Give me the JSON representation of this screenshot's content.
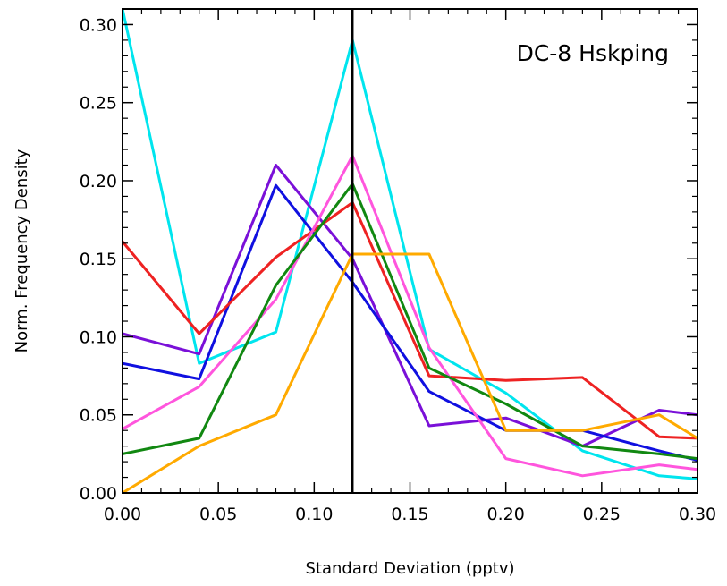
{
  "chart_data": {
    "type": "line",
    "title": "DC-8 Hskping",
    "xlabel": "Standard Deviation (pptv)",
    "ylabel": "Norm. Frequency Density",
    "xlim": [
      0.0,
      0.3
    ],
    "ylim": [
      0.0,
      0.31
    ],
    "xticks": [
      0.0,
      0.05,
      0.1,
      0.15,
      0.2,
      0.25,
      0.3
    ],
    "xtick_labels": [
      "0.00",
      "0.05",
      "0.10",
      "0.15",
      "0.20",
      "0.25",
      "0.30"
    ],
    "yticks": [
      0.0,
      0.05,
      0.1,
      0.15,
      0.2,
      0.25,
      0.3
    ],
    "ytick_labels": [
      "0.00",
      "0.05",
      "0.10",
      "0.15",
      "0.20",
      "0.25",
      "0.30"
    ],
    "grid": false,
    "vertical_line": {
      "x": 0.12,
      "color": "#000000"
    },
    "x": [
      0.0,
      0.04,
      0.08,
      0.12,
      0.16,
      0.2,
      0.24,
      0.28,
      0.3
    ],
    "series": [
      {
        "color": "#00e5ee",
        "values": [
          0.31,
          0.083,
          0.103,
          0.29,
          0.092,
          0.064,
          0.027,
          0.011,
          0.009
        ]
      },
      {
        "color": "#7a10d8",
        "values": [
          0.102,
          0.089,
          0.21,
          0.15,
          0.043,
          0.048,
          0.03,
          0.053,
          0.05
        ]
      },
      {
        "color": "#1010e0",
        "values": [
          0.083,
          0.073,
          0.197,
          0.135,
          0.065,
          0.04,
          0.04,
          0.027,
          0.021
        ]
      },
      {
        "color": "#ee2222",
        "values": [
          0.161,
          0.102,
          0.151,
          0.186,
          0.075,
          0.072,
          0.074,
          0.036,
          0.035
        ]
      },
      {
        "color": "#ff55dd",
        "values": [
          0.041,
          0.068,
          0.124,
          0.216,
          0.093,
          0.022,
          0.011,
          0.018,
          0.015
        ]
      },
      {
        "color": "#118811",
        "values": [
          0.025,
          0.035,
          0.133,
          0.198,
          0.08,
          0.057,
          0.03,
          0.025,
          0.022
        ]
      },
      {
        "color": "#ffaa00",
        "values": [
          0.0,
          0.03,
          0.05,
          0.153,
          0.153,
          0.04,
          0.04,
          0.05,
          0.035
        ]
      }
    ]
  }
}
